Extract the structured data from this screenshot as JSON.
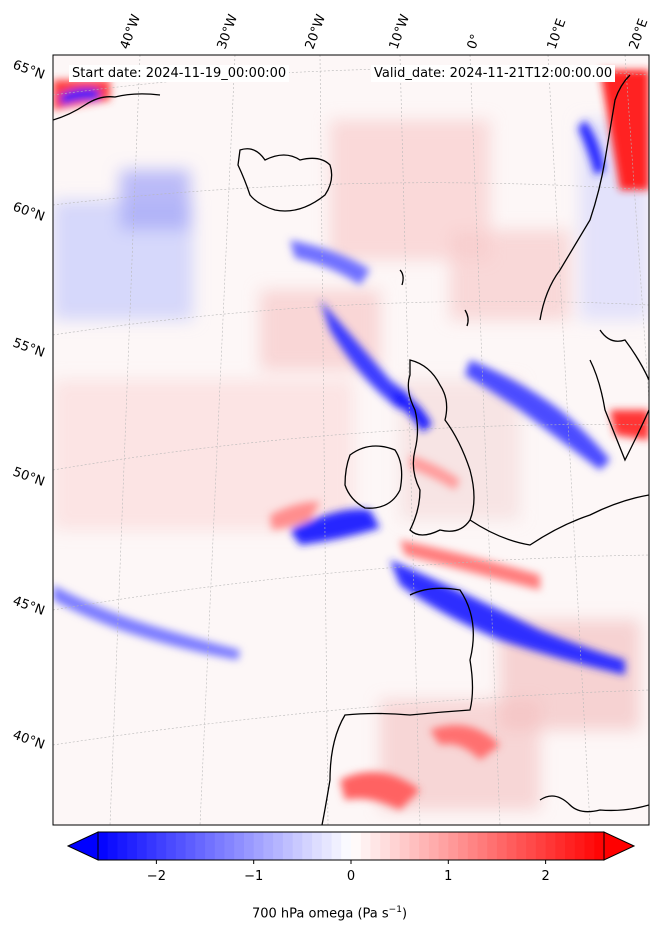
{
  "annotations": {
    "start": "Start date: 2024-11-19_00:00:00",
    "valid": "Valid_date: 2024-11-21T12:00:00.00"
  },
  "longitude_labels": [
    "40°W",
    "30°W",
    "20°W",
    "10°W",
    "0°",
    "10°E",
    "20°E"
  ],
  "latitude_labels": [
    "65°N",
    "60°N",
    "55°N",
    "50°N",
    "45°N",
    "40°N"
  ],
  "colorbar": {
    "label_prefix": "700 hPa omega (Pa s",
    "label_exponent": "−1",
    "label_suffix": ")",
    "ticks": [
      "−2",
      "−1",
      "0",
      "1",
      "2"
    ],
    "tick_values": [
      -2,
      -1,
      0,
      1,
      2
    ],
    "range": [
      -2.6,
      2.6
    ],
    "extend": "both",
    "colormap": "bwr",
    "colors": {
      "negative": "#0000ff",
      "zero": "#ffffff",
      "positive": "#ff0000"
    }
  },
  "coastline_color": "#000000",
  "graticule_color": "#b0b0b0"
}
